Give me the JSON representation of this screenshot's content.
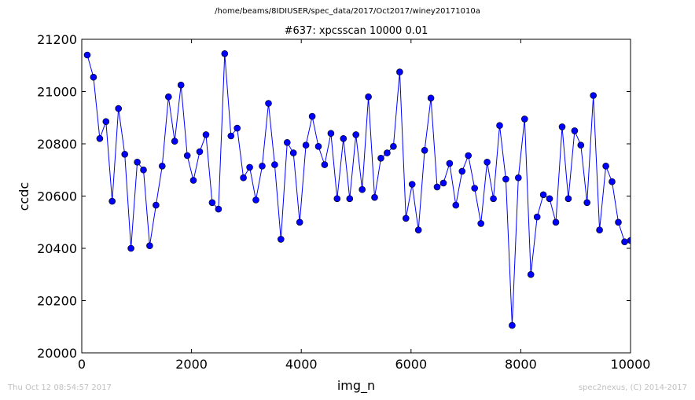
{
  "figure": {
    "suptitle": "/home/beams/8IDIUSER/spec_data/2017/Oct2017/winey20171010a",
    "footer_left": "Thu Oct 12 08:54:57 2017",
    "footer_right": "spec2nexus, (C) 2014-2017"
  },
  "chart_data": {
    "type": "line",
    "title": "#637: xpcsscan 10000 0.01",
    "xlabel": "img_n",
    "ylabel": "ccdc",
    "xlim": [
      0,
      10000
    ],
    "ylim": [
      20000,
      21200
    ],
    "xticks": [
      "0",
      "2000",
      "4000",
      "6000",
      "8000",
      "10000"
    ],
    "yticks": [
      "20000",
      "20200",
      "20400",
      "20600",
      "20800",
      "21000",
      "21200"
    ],
    "grid": false,
    "color": "#0000ff",
    "marker": "circle",
    "series": [
      {
        "x": [
          100,
          214,
          328,
          441,
          555,
          669,
          783,
          897,
          1011,
          1125,
          1238,
          1352,
          1466,
          1580,
          1694,
          1808,
          1922,
          2035,
          2149,
          2263,
          2377,
          2491,
          2605,
          2719,
          2832,
          2946,
          3060,
          3174,
          3288,
          3402,
          3516,
          3629,
          3743,
          3857,
          3971,
          4085,
          4199,
          4313,
          4426,
          4540,
          4654,
          4768,
          4882,
          4996,
          5110,
          5223,
          5337,
          5451,
          5565,
          5679,
          5793,
          5907,
          6020,
          6134,
          6248,
          6362,
          6476,
          6590,
          6704,
          6817,
          6931,
          7045,
          7159,
          7273,
          7387,
          7501,
          7614,
          7728,
          7842,
          7956,
          8070,
          8184,
          8298,
          8411,
          8525,
          8639,
          8753,
          8867,
          8981,
          9095,
          9208,
          9322,
          9436,
          9550,
          9664,
          9778,
          9892,
          10000
        ],
        "y": [
          21140,
          21055,
          20820,
          20885,
          20580,
          20935,
          20760,
          20400,
          20730,
          20700,
          20410,
          20565,
          20715,
          20980,
          20810,
          21025,
          20755,
          20660,
          20770,
          20835,
          20575,
          20550,
          21145,
          20830,
          20860,
          20670,
          20710,
          20585,
          20715,
          20955,
          20720,
          20435,
          20805,
          20765,
          20500,
          20795,
          20905,
          20790,
          20720,
          20840,
          20590,
          20820,
          20590,
          20835,
          20625,
          20980,
          20595,
          20745,
          20765,
          20790,
          21075,
          20515,
          20645,
          20470,
          20775,
          20975,
          20635,
          20650,
          20725,
          20565,
          20695,
          20755,
          20630,
          20495,
          20730,
          20590,
          20870,
          20665,
          20105,
          20670,
          20895,
          20300,
          20520,
          20605,
          20590,
          20500,
          20865,
          20590,
          20850,
          20795,
          20575,
          20985,
          20470,
          20715,
          20655,
          20500,
          20425,
          20430
        ]
      }
    ]
  }
}
